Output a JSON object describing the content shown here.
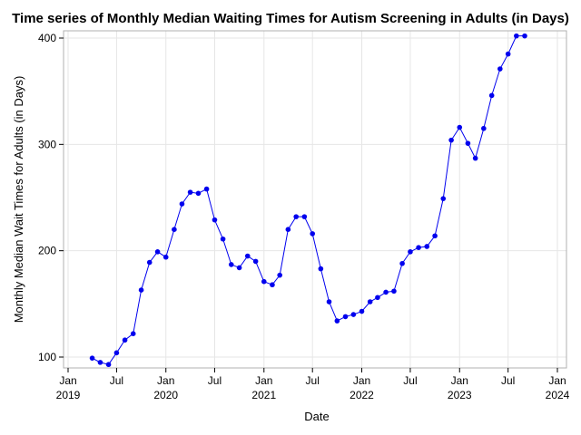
{
  "chart_data": {
    "type": "line",
    "title": "Time series of Monthly Median Waiting Times for Autism Screening in Adults (in Days)",
    "xlabel": "Date",
    "ylabel": "Monthly Median Wait Times for Adults (in Days)",
    "xlim": [
      "2019-01-01",
      "2024-01-01"
    ],
    "ylim": [
      90,
      405
    ],
    "grid": true,
    "color": "#0000ee",
    "x_ticks": [
      {
        "date": "2019-01-01",
        "month": "Jan",
        "year": "2019"
      },
      {
        "date": "2019-07-01",
        "month": "Jul",
        "year": ""
      },
      {
        "date": "2020-01-01",
        "month": "Jan",
        "year": "2020"
      },
      {
        "date": "2020-07-01",
        "month": "Jul",
        "year": ""
      },
      {
        "date": "2021-01-01",
        "month": "Jan",
        "year": "2021"
      },
      {
        "date": "2021-07-01",
        "month": "Jul",
        "year": ""
      },
      {
        "date": "2022-01-01",
        "month": "Jan",
        "year": "2022"
      },
      {
        "date": "2022-07-01",
        "month": "Jul",
        "year": ""
      },
      {
        "date": "2023-01-01",
        "month": "Jan",
        "year": "2023"
      },
      {
        "date": "2023-07-01",
        "month": "Jul",
        "year": ""
      },
      {
        "date": "2024-01-01",
        "month": "Jan",
        "year": "2024"
      }
    ],
    "y_ticks": [
      100,
      200,
      300,
      400
    ],
    "x": [
      "2019-04-01",
      "2019-05-01",
      "2019-06-01",
      "2019-07-01",
      "2019-08-01",
      "2019-09-01",
      "2019-10-01",
      "2019-11-01",
      "2019-12-01",
      "2020-01-01",
      "2020-02-01",
      "2020-03-01",
      "2020-04-01",
      "2020-05-01",
      "2020-06-01",
      "2020-07-01",
      "2020-08-01",
      "2020-09-01",
      "2020-10-01",
      "2020-11-01",
      "2020-12-01",
      "2021-01-01",
      "2021-02-01",
      "2021-03-01",
      "2021-04-01",
      "2021-05-01",
      "2021-06-01",
      "2021-07-01",
      "2021-08-01",
      "2021-09-01",
      "2021-10-01",
      "2021-11-01",
      "2021-12-01",
      "2022-01-01",
      "2022-02-01",
      "2022-03-01",
      "2022-04-01",
      "2022-05-01",
      "2022-06-01",
      "2022-07-01",
      "2022-08-01",
      "2022-09-01",
      "2022-10-01",
      "2022-11-01",
      "2022-12-01",
      "2023-01-01",
      "2023-02-01",
      "2023-03-01",
      "2023-04-01",
      "2023-05-01",
      "2023-06-01",
      "2023-07-01",
      "2023-08-01",
      "2023-09-01"
    ],
    "series": [
      {
        "values": [
          99,
          95,
          93,
          104,
          116,
          122,
          163,
          189,
          199,
          194,
          220,
          244,
          255,
          254,
          258,
          229,
          211,
          187,
          184,
          195,
          190,
          171,
          168,
          177,
          220,
          232,
          232,
          216,
          183,
          152,
          134,
          138,
          140,
          143,
          152,
          156,
          161,
          162,
          188,
          199,
          203,
          204,
          214,
          249,
          304,
          316,
          301,
          287,
          315,
          346,
          371,
          385,
          402,
          402
        ]
      }
    ]
  }
}
